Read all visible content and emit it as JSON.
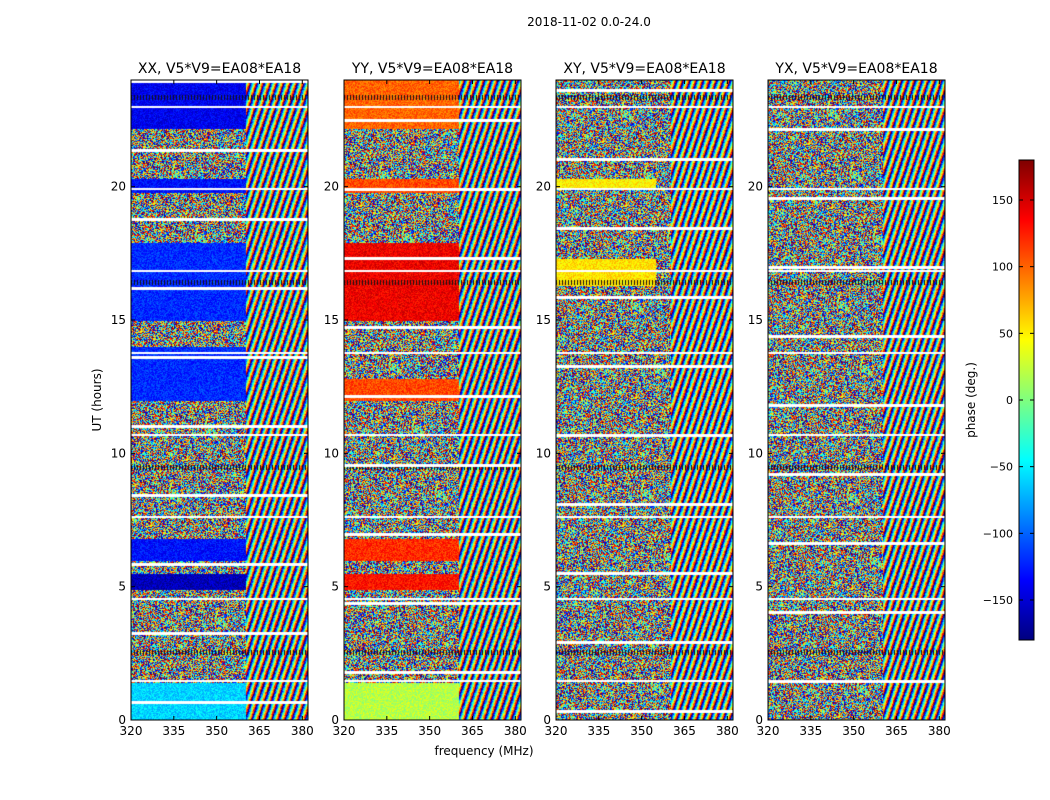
{
  "figure": {
    "suptitle": "2018-11-02 0.0-24.0",
    "xlabel": "frequency (MHz)",
    "ylabel": "UT (hours)"
  },
  "colorbar": {
    "label": "phase (deg.)",
    "range": [
      -180,
      180
    ],
    "ticks": [
      150,
      100,
      50,
      0,
      -50,
      -100,
      -150
    ],
    "tick_labels": [
      "150",
      "100",
      "50",
      "0",
      "−50",
      "−100",
      "−150"
    ],
    "colormap": [
      "#00007f",
      "#0000ff",
      "#007fff",
      "#00ffff",
      "#7fff7f",
      "#ffff00",
      "#ff7f00",
      "#ff0000",
      "#7f0000"
    ]
  },
  "chart_data": [
    {
      "type": "heatmap",
      "title": "XX, V5*V9=EA08*EA18",
      "xlim": [
        320,
        382
      ],
      "ylim": [
        0,
        24
      ],
      "xticks": [
        320,
        335,
        350,
        365,
        380
      ],
      "yticks": [
        0,
        5,
        10,
        15,
        20
      ],
      "value": "phase (deg.)",
      "tones": [
        {
          "from": 0,
          "to": 1.4,
          "freq_end": 360,
          "phase": -60
        },
        {
          "from": 4.9,
          "to": 5.5,
          "freq_end": 360,
          "phase": -160
        },
        {
          "from": 6.0,
          "to": 6.8,
          "freq_end": 360,
          "phase": -130
        },
        {
          "from": 12.0,
          "to": 14.0,
          "freq_end": 360,
          "phase": -120
        },
        {
          "from": 15.0,
          "to": 17.9,
          "freq_end": 360,
          "phase": -120
        },
        {
          "from": 19.8,
          "to": 20.3,
          "freq_end": 360,
          "phase": -130
        },
        {
          "from": 22.2,
          "to": 24.0,
          "freq_end": 360,
          "phase": -140
        }
      ]
    },
    {
      "type": "heatmap",
      "title": "YY, V5*V9=EA08*EA18",
      "xlim": [
        320,
        382
      ],
      "ylim": [
        0,
        24
      ],
      "xticks": [
        320,
        335,
        350,
        365,
        380
      ],
      "yticks": [
        0,
        5,
        10,
        15,
        20
      ],
      "value": "phase (deg.)",
      "tones": [
        {
          "from": 0,
          "to": 1.4,
          "freq_end": 360,
          "phase": 20
        },
        {
          "from": 4.9,
          "to": 5.5,
          "freq_end": 360,
          "phase": 130
        },
        {
          "from": 6.0,
          "to": 6.8,
          "freq_end": 360,
          "phase": 120
        },
        {
          "from": 12.0,
          "to": 12.8,
          "freq_end": 360,
          "phase": 110
        },
        {
          "from": 15.0,
          "to": 17.9,
          "freq_end": 360,
          "phase": 140
        },
        {
          "from": 19.8,
          "to": 20.3,
          "freq_end": 360,
          "phase": 110
        },
        {
          "from": 22.2,
          "to": 24.0,
          "freq_end": 360,
          "phase": 100
        }
      ]
    },
    {
      "type": "heatmap",
      "title": "XY, V5*V9=EA08*EA18",
      "xlim": [
        320,
        382
      ],
      "ylim": [
        0,
        24
      ],
      "xticks": [
        320,
        335,
        350,
        365,
        380
      ],
      "yticks": [
        0,
        5,
        10,
        15,
        20
      ],
      "value": "phase (deg.)",
      "tones": [
        {
          "from": 16.3,
          "to": 17.3,
          "freq_end": 355,
          "phase": 55
        },
        {
          "from": 19.9,
          "to": 20.3,
          "freq_end": 355,
          "phase": 50
        }
      ]
    },
    {
      "type": "heatmap",
      "title": "YX, V5*V9=EA08*EA18",
      "xlim": [
        320,
        382
      ],
      "ylim": [
        0,
        24
      ],
      "xticks": [
        320,
        335,
        350,
        365,
        380
      ],
      "yticks": [
        0,
        5,
        10,
        15,
        20
      ],
      "value": "phase (deg.)",
      "tones": []
    }
  ]
}
